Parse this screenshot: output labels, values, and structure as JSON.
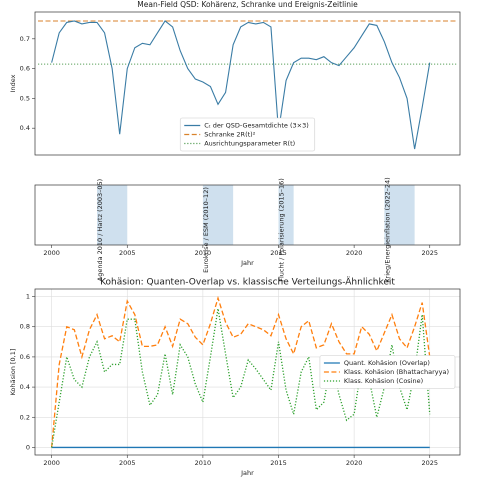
{
  "chart_data": [
    {
      "type": "line",
      "title": "Mean-Field QSD: Kohärenz, Schranke und Ereignis-Zeitlinie",
      "ylabel": "Index",
      "x": [
        2000,
        2000.5,
        2001,
        2001.5,
        2002,
        2002.5,
        2003,
        2003.5,
        2004,
        2004.5,
        2005,
        2005.5,
        2006,
        2006.5,
        2007,
        2007.5,
        2008,
        2008.5,
        2009,
        2009.5,
        2010,
        2010.5,
        2011,
        2011.5,
        2012,
        2012.5,
        2013,
        2013.5,
        2014,
        2014.5,
        2015,
        2015.5,
        2016,
        2016.5,
        2017,
        2017.5,
        2018,
        2018.5,
        2019,
        2019.5,
        2020,
        2020.5,
        2021,
        2021.5,
        2022,
        2022.5,
        2023,
        2023.5,
        2024,
        2024.5,
        2025
      ],
      "series": [
        {
          "name": "Cₜ der QSD-Gesamtdichte (3×3)",
          "color": "#3a7ca5",
          "linestyle": "solid",
          "values": [
            0.62,
            0.72,
            0.755,
            0.76,
            0.75,
            0.755,
            0.755,
            0.72,
            0.6,
            0.38,
            0.6,
            0.67,
            0.685,
            0.68,
            0.72,
            0.76,
            0.74,
            0.66,
            0.6,
            0.565,
            0.555,
            0.54,
            0.48,
            0.52,
            0.68,
            0.74,
            0.755,
            0.75,
            0.755,
            0.74,
            0.39,
            0.56,
            0.62,
            0.635,
            0.635,
            0.63,
            0.64,
            0.62,
            0.61,
            0.64,
            0.67,
            0.71,
            0.75,
            0.745,
            0.69,
            0.62,
            0.57,
            0.5,
            0.33,
            0.47,
            0.62
          ]
        }
      ],
      "hlines": [
        {
          "name": "Schranke 2R(t)²",
          "value": 0.76,
          "color": "#d9822b",
          "linestyle": "dashed"
        },
        {
          "name": "Ausrichtungsparameter R(t)",
          "value": 0.615,
          "color": "#5aa05a",
          "linestyle": "dotted"
        }
      ],
      "xlim": [
        1998.9,
        2027
      ],
      "ylim": [
        0.31,
        0.79
      ],
      "yticks": [
        0.4,
        0.5,
        0.6,
        0.7
      ],
      "grid": false,
      "legend": "lower center"
    },
    {
      "type": "timeline",
      "xlabel": "Jahr",
      "spans": [
        {
          "start": 2003,
          "end": 2005,
          "label": "Agenda 2010 / Hartz (2003–05)"
        },
        {
          "start": 2010,
          "end": 2012,
          "label": "Eurokrise / ESM (2010–12)"
        },
        {
          "start": 2015,
          "end": 2016,
          "label": "Flucht / Polarisierung (2015–16)"
        },
        {
          "start": 2022,
          "end": 2024,
          "label": "Krieg/Energieinflation (2022–24)"
        }
      ],
      "color": "#cfe0ee",
      "xlim": [
        1998.9,
        2027
      ],
      "xticks": [
        2000,
        2005,
        2010,
        2015,
        2020,
        2025
      ]
    },
    {
      "type": "line",
      "title": "Kohäsion: Quanten-Overlap vs. klassische Verteilungs-Ähnlichkeit",
      "xlabel": "Jahr",
      "ylabel": "Kohäsion [0,1]",
      "x": [
        2000,
        2000.5,
        2001,
        2001.5,
        2002,
        2002.5,
        2003,
        2003.5,
        2004,
        2004.5,
        2005,
        2005.5,
        2006,
        2006.5,
        2007,
        2007.5,
        2008,
        2008.5,
        2009,
        2009.5,
        2010,
        2010.5,
        2011,
        2011.5,
        2012,
        2012.5,
        2013,
        2013.5,
        2014,
        2014.5,
        2015,
        2015.5,
        2016,
        2016.5,
        2017,
        2017.5,
        2018,
        2018.5,
        2019,
        2019.5,
        2020,
        2020.5,
        2021,
        2021.5,
        2022,
        2022.5,
        2023,
        2023.5,
        2024,
        2024.5,
        2025
      ],
      "series": [
        {
          "name": "Quant. Kohäsion (Overlap)",
          "color": "#1f77b4",
          "linestyle": "solid",
          "values": [
            0,
            0,
            0,
            0,
            0,
            0,
            0,
            0,
            0,
            0,
            0,
            0,
            0,
            0,
            0,
            0,
            0,
            0,
            0,
            0,
            0,
            0,
            0,
            0,
            0,
            0,
            0,
            0,
            0,
            0,
            0,
            0,
            0,
            0,
            0,
            0,
            0,
            0,
            0,
            0,
            0,
            0,
            0,
            0,
            0,
            0,
            0,
            0,
            0,
            0,
            0
          ]
        },
        {
          "name": "Klass. Kohäsion (Bhattacharyya)",
          "color": "#ff7f0e",
          "linestyle": "dashed",
          "values": [
            0,
            0.55,
            0.8,
            0.78,
            0.6,
            0.78,
            0.88,
            0.72,
            0.74,
            0.7,
            0.97,
            0.88,
            0.67,
            0.67,
            0.68,
            0.8,
            0.67,
            0.85,
            0.82,
            0.73,
            0.68,
            0.82,
            0.99,
            0.83,
            0.73,
            0.75,
            0.82,
            0.8,
            0.78,
            0.74,
            0.88,
            0.72,
            0.62,
            0.8,
            0.84,
            0.66,
            0.68,
            0.82,
            0.7,
            0.62,
            0.62,
            0.8,
            0.75,
            0.64,
            0.76,
            0.88,
            0.72,
            0.66,
            0.8,
            0.96,
            0.6
          ]
        },
        {
          "name": "Klass. Kohäsion (Cosine)",
          "color": "#2ca02c",
          "linestyle": "dotted",
          "values": [
            0,
            0.3,
            0.6,
            0.45,
            0.4,
            0.6,
            0.7,
            0.5,
            0.55,
            0.55,
            0.85,
            0.85,
            0.5,
            0.28,
            0.35,
            0.62,
            0.35,
            0.68,
            0.6,
            0.42,
            0.3,
            0.6,
            0.92,
            0.62,
            0.33,
            0.4,
            0.58,
            0.52,
            0.45,
            0.38,
            0.7,
            0.38,
            0.22,
            0.5,
            0.6,
            0.25,
            0.3,
            0.58,
            0.35,
            0.18,
            0.22,
            0.55,
            0.45,
            0.2,
            0.4,
            0.68,
            0.4,
            0.25,
            0.5,
            0.88,
            0.22
          ]
        }
      ],
      "xlim": [
        1998.9,
        2027
      ],
      "ylim": [
        -0.05,
        1.05
      ],
      "xticks": [
        2000,
        2005,
        2010,
        2015,
        2020,
        2025
      ],
      "yticks": [
        0.0,
        0.2,
        0.4,
        0.6,
        0.8,
        1.0
      ],
      "grid": true,
      "legend": "center right"
    }
  ]
}
